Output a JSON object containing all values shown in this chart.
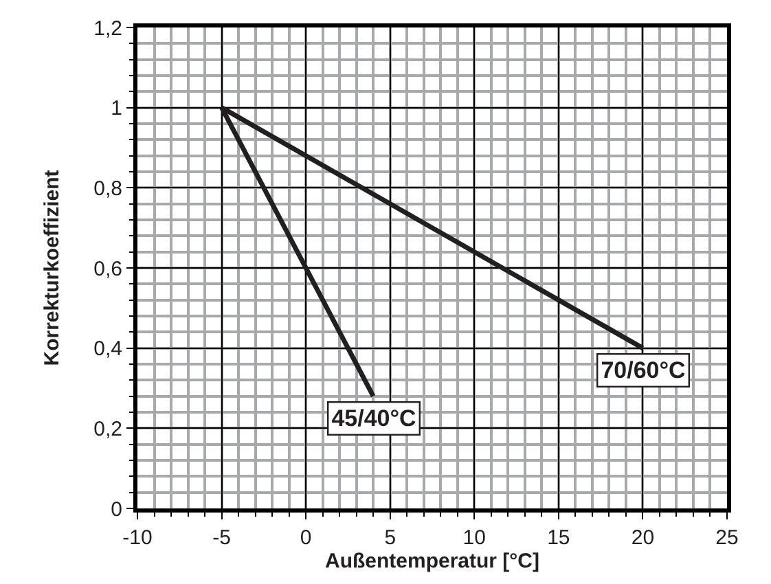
{
  "chart_data": {
    "type": "line",
    "xlabel": "Außentemperatur [°C]",
    "ylabel": "Korrekturkoeffizient",
    "xlim": [
      -10,
      25
    ],
    "xticks": [
      -10,
      -5,
      0,
      5,
      10,
      15,
      20,
      25
    ],
    "ylim": [
      0,
      1.2
    ],
    "yticks": [
      {
        "value": 0,
        "label": "0"
      },
      {
        "value": 0.2,
        "label": "0,2"
      },
      {
        "value": 0.4,
        "label": "0,4"
      },
      {
        "value": 0.6,
        "label": "0,6"
      },
      {
        "value": 0.8,
        "label": "0,8"
      },
      {
        "value": 1,
        "label": "1"
      },
      {
        "value": 1.2,
        "label": "1,2"
      }
    ],
    "grid": true,
    "legend": false,
    "series": [
      {
        "name": "45/40°C",
        "color": "#231f20",
        "x": [
          -5,
          4
        ],
        "values": [
          1,
          0.28
        ]
      },
      {
        "name": "70/60°C",
        "color": "#231f20",
        "x": [
          -5,
          20
        ],
        "values": [
          1,
          0.4
        ]
      }
    ]
  }
}
